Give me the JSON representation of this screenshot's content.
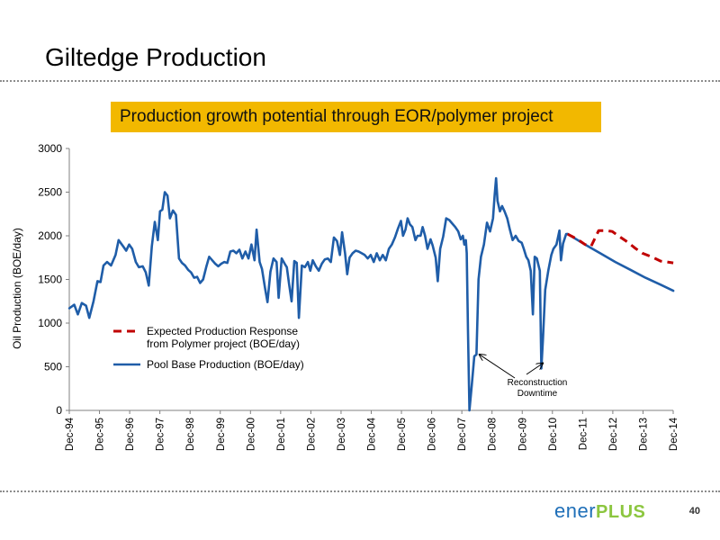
{
  "slide": {
    "title": "Giltedge Production",
    "page_number": "40"
  },
  "callout": {
    "text": "Production growth potential through EOR/polymer project",
    "color": "#f2b800"
  },
  "logo": {
    "part1": "ener",
    "part2": "PLUS",
    "color1": "#1f6fb8",
    "color2": "#8cc63f"
  },
  "chart_data": {
    "type": "line",
    "title": "",
    "xlabel": "",
    "ylabel": "Oil Production  (BOE/day)",
    "ylim": [
      0,
      3000
    ],
    "yticks": [
      0,
      500,
      1000,
      1500,
      2000,
      2500,
      3000
    ],
    "xlim": [
      1994.917,
      2014.917
    ],
    "xticks": [
      "Dec-94",
      "Dec-95",
      "Dec-96",
      "Dec-97",
      "Dec-98",
      "Dec-99",
      "Dec-00",
      "Dec-01",
      "Dec-02",
      "Dec-03",
      "Dec-04",
      "Dec-05",
      "Dec-06",
      "Dec-07",
      "Dec-08",
      "Dec-09",
      "Dec-10",
      "Dec-11",
      "Dec-12",
      "Dec-13",
      "Dec-14"
    ],
    "grid": false,
    "legend_position": "bottom-left",
    "series": [
      {
        "name": "Pool Base Production (BOE/day)",
        "color": "#1f5da8",
        "style": "solid",
        "points": [
          [
            1994.92,
            1170
          ],
          [
            1995.08,
            1210
          ],
          [
            1995.2,
            1100
          ],
          [
            1995.33,
            1230
          ],
          [
            1995.47,
            1200
          ],
          [
            1995.58,
            1060
          ],
          [
            1995.72,
            1250
          ],
          [
            1995.85,
            1480
          ],
          [
            1995.95,
            1470
          ],
          [
            1996.05,
            1660
          ],
          [
            1996.17,
            1700
          ],
          [
            1996.3,
            1660
          ],
          [
            1996.45,
            1780
          ],
          [
            1996.55,
            1950
          ],
          [
            1996.7,
            1880
          ],
          [
            1996.8,
            1830
          ],
          [
            1996.9,
            1900
          ],
          [
            1997.0,
            1850
          ],
          [
            1997.12,
            1700
          ],
          [
            1997.22,
            1640
          ],
          [
            1997.35,
            1650
          ],
          [
            1997.45,
            1580
          ],
          [
            1997.55,
            1430
          ],
          [
            1997.65,
            1880
          ],
          [
            1997.75,
            2160
          ],
          [
            1997.85,
            1950
          ],
          [
            1997.92,
            2280
          ],
          [
            1998.0,
            2300
          ],
          [
            1998.08,
            2500
          ],
          [
            1998.17,
            2460
          ],
          [
            1998.25,
            2200
          ],
          [
            1998.35,
            2290
          ],
          [
            1998.45,
            2240
          ],
          [
            1998.55,
            1740
          ],
          [
            1998.65,
            1690
          ],
          [
            1998.75,
            1660
          ],
          [
            1998.85,
            1610
          ],
          [
            1998.95,
            1580
          ],
          [
            1999.05,
            1520
          ],
          [
            1999.15,
            1530
          ],
          [
            1999.25,
            1460
          ],
          [
            1999.35,
            1500
          ],
          [
            1999.45,
            1640
          ],
          [
            1999.55,
            1760
          ],
          [
            1999.65,
            1720
          ],
          [
            1999.75,
            1680
          ],
          [
            1999.85,
            1650
          ],
          [
            1999.95,
            1680
          ],
          [
            2000.05,
            1700
          ],
          [
            2000.15,
            1690
          ],
          [
            2000.25,
            1820
          ],
          [
            2000.35,
            1830
          ],
          [
            2000.45,
            1800
          ],
          [
            2000.55,
            1840
          ],
          [
            2000.65,
            1740
          ],
          [
            2000.75,
            1820
          ],
          [
            2000.85,
            1740
          ],
          [
            2000.95,
            1900
          ],
          [
            2001.05,
            1720
          ],
          [
            2001.12,
            2070
          ],
          [
            2001.22,
            1700
          ],
          [
            2001.3,
            1620
          ],
          [
            2001.4,
            1400
          ],
          [
            2001.48,
            1240
          ],
          [
            2001.58,
            1590
          ],
          [
            2001.68,
            1740
          ],
          [
            2001.78,
            1700
          ],
          [
            2001.85,
            1290
          ],
          [
            2001.95,
            1740
          ],
          [
            2002.05,
            1680
          ],
          [
            2002.12,
            1640
          ],
          [
            2002.2,
            1440
          ],
          [
            2002.28,
            1250
          ],
          [
            2002.37,
            1710
          ],
          [
            2002.45,
            1690
          ],
          [
            2002.52,
            1060
          ],
          [
            2002.62,
            1660
          ],
          [
            2002.72,
            1640
          ],
          [
            2002.82,
            1700
          ],
          [
            2002.9,
            1600
          ],
          [
            2002.98,
            1720
          ],
          [
            2003.08,
            1650
          ],
          [
            2003.18,
            1600
          ],
          [
            2003.28,
            1680
          ],
          [
            2003.38,
            1730
          ],
          [
            2003.48,
            1740
          ],
          [
            2003.58,
            1700
          ],
          [
            2003.68,
            1980
          ],
          [
            2003.78,
            1940
          ],
          [
            2003.88,
            1780
          ],
          [
            2003.95,
            2040
          ],
          [
            2004.05,
            1800
          ],
          [
            2004.12,
            1560
          ],
          [
            2004.2,
            1750
          ],
          [
            2004.3,
            1800
          ],
          [
            2004.4,
            1830
          ],
          [
            2004.5,
            1820
          ],
          [
            2004.6,
            1800
          ],
          [
            2004.7,
            1780
          ],
          [
            2004.8,
            1740
          ],
          [
            2004.9,
            1780
          ],
          [
            2005.0,
            1700
          ],
          [
            2005.1,
            1800
          ],
          [
            2005.2,
            1720
          ],
          [
            2005.3,
            1780
          ],
          [
            2005.4,
            1720
          ],
          [
            2005.5,
            1850
          ],
          [
            2005.6,
            1900
          ],
          [
            2005.7,
            1980
          ],
          [
            2005.8,
            2080
          ],
          [
            2005.9,
            2170
          ],
          [
            2005.97,
            2000
          ],
          [
            2006.05,
            2070
          ],
          [
            2006.12,
            2200
          ],
          [
            2006.2,
            2130
          ],
          [
            2006.28,
            2100
          ],
          [
            2006.38,
            1950
          ],
          [
            2006.45,
            2000
          ],
          [
            2006.55,
            2000
          ],
          [
            2006.62,
            2100
          ],
          [
            2006.7,
            2000
          ],
          [
            2006.78,
            1850
          ],
          [
            2006.88,
            1960
          ],
          [
            2006.95,
            1890
          ],
          [
            2007.05,
            1750
          ],
          [
            2007.12,
            1480
          ],
          [
            2007.2,
            1850
          ],
          [
            2007.3,
            1990
          ],
          [
            2007.4,
            2200
          ],
          [
            2007.5,
            2180
          ],
          [
            2007.6,
            2140
          ],
          [
            2007.7,
            2100
          ],
          [
            2007.8,
            2050
          ],
          [
            2007.88,
            1960
          ],
          [
            2007.95,
            2000
          ],
          [
            2008.0,
            1900
          ],
          [
            2008.05,
            1950
          ],
          [
            2008.08,
            1800
          ],
          [
            2008.12,
            900
          ],
          [
            2008.17,
            0
          ],
          [
            2008.25,
            300
          ],
          [
            2008.33,
            620
          ],
          [
            2008.4,
            640
          ],
          [
            2008.47,
            1500
          ],
          [
            2008.55,
            1760
          ],
          [
            2008.65,
            1900
          ],
          [
            2008.75,
            2150
          ],
          [
            2008.85,
            2050
          ],
          [
            2008.95,
            2200
          ],
          [
            2009.0,
            2450
          ],
          [
            2009.05,
            2660
          ],
          [
            2009.1,
            2400
          ],
          [
            2009.18,
            2280
          ],
          [
            2009.25,
            2340
          ],
          [
            2009.33,
            2280
          ],
          [
            2009.42,
            2200
          ],
          [
            2009.5,
            2080
          ],
          [
            2009.6,
            1950
          ],
          [
            2009.7,
            2000
          ],
          [
            2009.8,
            1940
          ],
          [
            2009.9,
            1920
          ],
          [
            2009.97,
            1850
          ],
          [
            2010.05,
            1760
          ],
          [
            2010.12,
            1720
          ],
          [
            2010.2,
            1600
          ],
          [
            2010.27,
            1100
          ],
          [
            2010.33,
            1760
          ],
          [
            2010.4,
            1740
          ],
          [
            2010.5,
            1600
          ],
          [
            2010.55,
            480
          ],
          [
            2010.6,
            800
          ],
          [
            2010.68,
            1380
          ],
          [
            2010.78,
            1600
          ],
          [
            2010.88,
            1780
          ],
          [
            2010.95,
            1850
          ],
          [
            2011.05,
            1900
          ],
          [
            2011.15,
            2060
          ],
          [
            2011.2,
            1720
          ],
          [
            2011.27,
            1910
          ],
          [
            2011.37,
            2020
          ],
          [
            2011.42,
            2020
          ]
        ]
      },
      {
        "name": "Pool Base Production forecast",
        "color": "#1f5da8",
        "style": "solid",
        "points": [
          [
            2011.42,
            2020
          ],
          [
            2012.0,
            1900
          ],
          [
            2012.5,
            1800
          ],
          [
            2013.0,
            1700
          ],
          [
            2013.5,
            1610
          ],
          [
            2014.0,
            1520
          ],
          [
            2014.5,
            1440
          ],
          [
            2014.92,
            1370
          ]
        ]
      },
      {
        "name": "Expected Production Response from Polymer project (BOE/day)",
        "color": "#c00000",
        "style": "dashed",
        "points": [
          [
            2011.42,
            2020
          ],
          [
            2011.75,
            1960
          ],
          [
            2012.0,
            1900
          ],
          [
            2012.2,
            1880
          ],
          [
            2012.45,
            2060
          ],
          [
            2012.7,
            2060
          ],
          [
            2012.9,
            2050
          ],
          [
            2013.1,
            2000
          ],
          [
            2013.4,
            1930
          ],
          [
            2013.65,
            1860
          ],
          [
            2013.9,
            1800
          ],
          [
            2014.2,
            1760
          ],
          [
            2014.5,
            1710
          ],
          [
            2014.92,
            1690
          ]
        ]
      }
    ],
    "legend_entries": [
      {
        "key": "polymer",
        "lines": [
          "Expected Production Response",
          "from Polymer project (BOE/day)"
        ],
        "color": "#c00000",
        "style": "dashed"
      },
      {
        "key": "pool",
        "lines": [
          "Pool Base Production (BOE/day)"
        ],
        "color": "#1f5da8",
        "style": "solid"
      }
    ],
    "annotations": [
      {
        "lines": [
          "Reconstruction",
          "Downtime"
        ],
        "arrow_targets": [
          [
            2008.5,
            640
          ],
          [
            2010.6,
            540
          ]
        ]
      }
    ]
  }
}
